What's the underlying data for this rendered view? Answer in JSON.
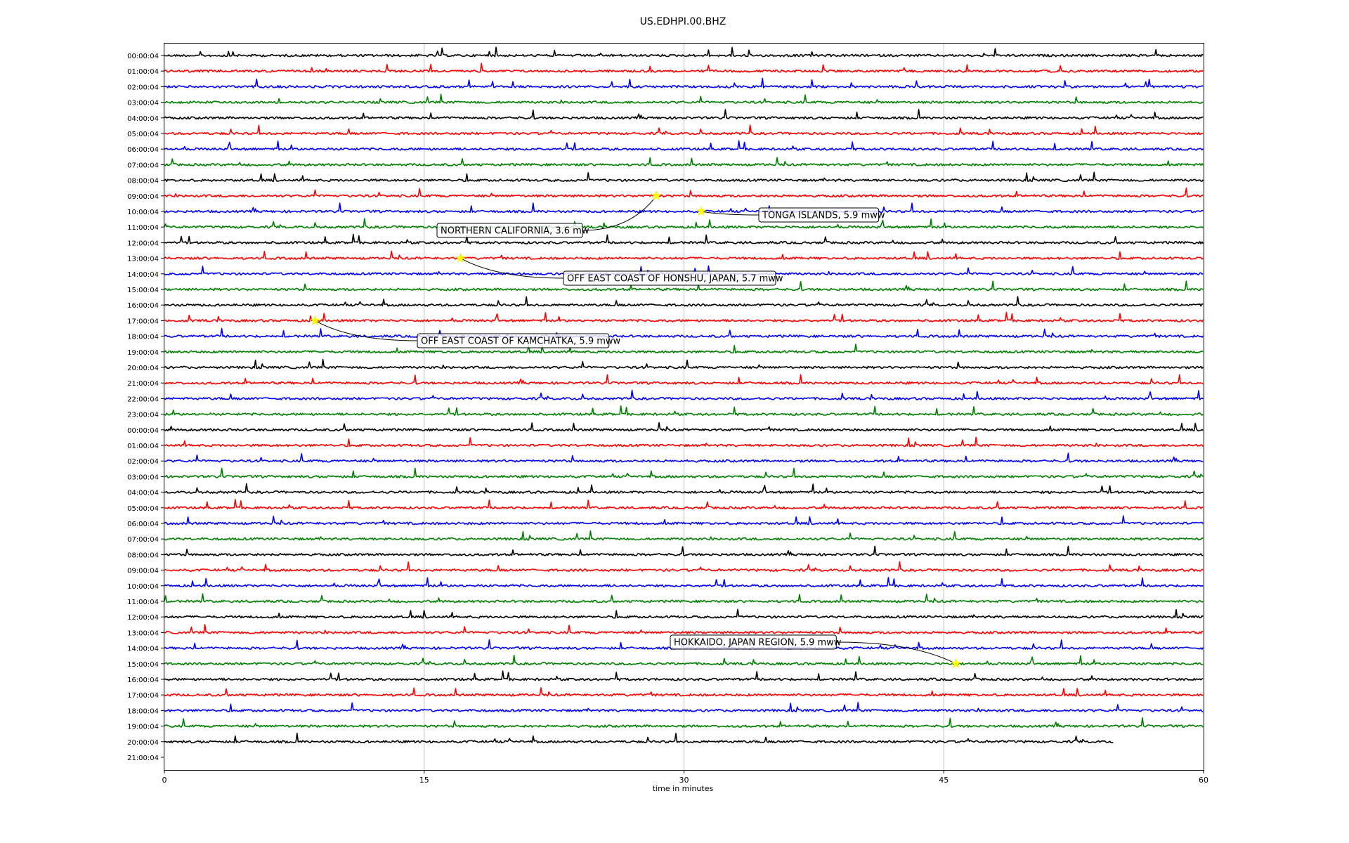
{
  "chart_data": {
    "type": "line",
    "title": "US.EDHPI.00.BHZ",
    "xlabel": "time in minutes",
    "ylabel": "",
    "xlim": [
      0,
      60
    ],
    "x_ticks": [
      "0",
      "15",
      "30",
      "45",
      "60"
    ],
    "grid": "vertical lines at 15, 30, 45",
    "trace_colors": [
      "#000000",
      "#ff0000",
      "#0000ff",
      "#008000"
    ],
    "y_tick_labels": [
      "00:00:04",
      "01:00:04",
      "02:00:04",
      "03:00:04",
      "04:00:04",
      "05:00:04",
      "06:00:04",
      "07:00:04",
      "08:00:04",
      "09:00:04",
      "10:00:04",
      "11:00:04",
      "12:00:04",
      "13:00:04",
      "14:00:04",
      "15:00:04",
      "16:00:04",
      "17:00:04",
      "18:00:04",
      "19:00:04",
      "20:00:04",
      "21:00:04",
      "22:00:04",
      "23:00:04",
      "00:00:04",
      "01:00:04",
      "02:00:04",
      "03:00:04",
      "04:00:04",
      "05:00:04",
      "06:00:04",
      "07:00:04",
      "08:00:04",
      "09:00:04",
      "10:00:04",
      "11:00:04",
      "12:00:04",
      "13:00:04",
      "14:00:04",
      "15:00:04",
      "16:00:04",
      "17:00:04",
      "18:00:04",
      "19:00:04",
      "20:00:04",
      "21:00:04"
    ],
    "last_trace_end_minute": 54.8,
    "events": [
      {
        "label": "TONGA ISLANDS, 5.9 mww",
        "row": 10,
        "minute": 31.0
      },
      {
        "label": "NORTHERN CALIFORNIA, 3.6 mw",
        "row": 9,
        "minute": 28.4
      },
      {
        "label": "OFF EAST COAST OF HONSHU, JAPAN, 5.7 mww",
        "row": 13,
        "minute": 17.1
      },
      {
        "label": "OFF EAST COAST OF KAMCHATKA, 5.9 mww",
        "row": 17,
        "minute": 8.7
      },
      {
        "label": "HOKKAIDO, JAPAN REGION, 5.9 mww",
        "row": 39,
        "minute": 45.7
      }
    ]
  }
}
